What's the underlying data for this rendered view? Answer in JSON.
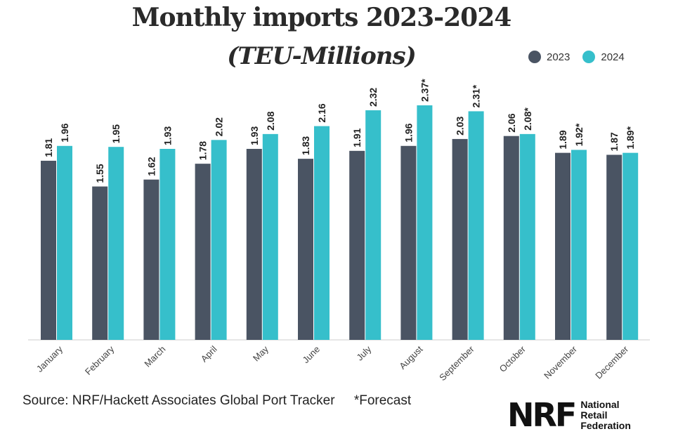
{
  "title": "Monthly imports 2023-2024",
  "subtitle": "(TEU-Millions)",
  "legend": [
    {
      "label": "2023",
      "color": "#4a5463"
    },
    {
      "label": "2024",
      "color": "#36bfcb"
    }
  ],
  "footer": {
    "source": "Source: NRF/Hackett Associates Global Port Tracker",
    "forecast_note": "*Forecast"
  },
  "logo": {
    "mark": "NRF",
    "line1": "National",
    "line2": "Retail",
    "line3": "Federation"
  },
  "chart_data": {
    "type": "bar",
    "title": "Monthly imports 2023-2024",
    "subtitle": "(TEU-Millions)",
    "categories": [
      "January",
      "February",
      "March",
      "April",
      "May",
      "June",
      "July",
      "August",
      "September",
      "October",
      "November",
      "December"
    ],
    "series": [
      {
        "name": "2023",
        "color": "#4a5463",
        "values": [
          1.81,
          1.55,
          1.62,
          1.78,
          1.93,
          1.83,
          1.91,
          1.96,
          2.03,
          2.06,
          1.89,
          1.87
        ]
      },
      {
        "name": "2024",
        "color": "#36bfcb",
        "values": [
          1.96,
          1.95,
          1.93,
          2.02,
          2.08,
          2.16,
          2.32,
          2.37,
          2.31,
          2.08,
          1.92,
          1.89
        ],
        "labels": [
          "1.96",
          "1.95",
          "1.93",
          "2.02",
          "2.08",
          "2.16",
          "2.32",
          "2.37*",
          "2.31*",
          "2.08*",
          "1.92*",
          "1.89*"
        ]
      }
    ],
    "ylim": [
      0,
      2.6
    ],
    "grid": false,
    "legend_position": "top-right",
    "y_axis_visible": false
  }
}
